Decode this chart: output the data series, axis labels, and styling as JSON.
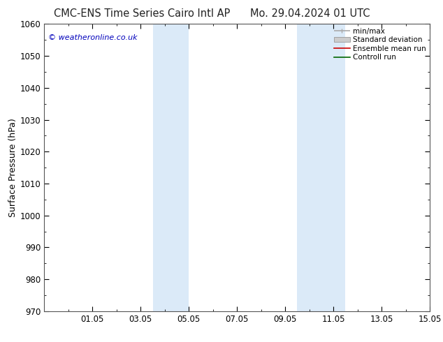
{
  "title_left": "CMC-ENS Time Series Cairo Intl AP",
  "title_right": "Mo. 29.04.2024 01 UTC",
  "ylabel": "Surface Pressure (hPa)",
  "ylim": [
    970,
    1060
  ],
  "yticks": [
    970,
    980,
    990,
    1000,
    1010,
    1020,
    1030,
    1040,
    1050,
    1060
  ],
  "xlim": [
    0,
    16
  ],
  "xtick_labels": [
    "01.05",
    "03.05",
    "05.05",
    "07.05",
    "09.05",
    "11.05",
    "13.05",
    "15.05"
  ],
  "xtick_positions": [
    2,
    4,
    6,
    8,
    10,
    12,
    14,
    16
  ],
  "shaded_bands": [
    {
      "start": 4.5,
      "end": 6.0
    },
    {
      "start": 10.5,
      "end": 12.5
    }
  ],
  "shaded_color": "#dbeaf8",
  "legend_items": [
    {
      "label": "min/max",
      "color": "#aaaaaa",
      "lw": 1.2,
      "style": "minmax"
    },
    {
      "label": "Standard deviation",
      "color": "#cccccc",
      "lw": 8,
      "style": "band"
    },
    {
      "label": "Ensemble mean run",
      "color": "#cc0000",
      "lw": 1.2,
      "style": "line"
    },
    {
      "label": "Controll run",
      "color": "#006600",
      "lw": 1.2,
      "style": "line"
    }
  ],
  "watermark": "© weatheronline.co.uk",
  "watermark_color": "#0000bb",
  "background_color": "#ffffff",
  "axes_bg": "#ffffff",
  "title_fontsize": 10.5,
  "tick_fontsize": 8.5,
  "ylabel_fontsize": 9
}
